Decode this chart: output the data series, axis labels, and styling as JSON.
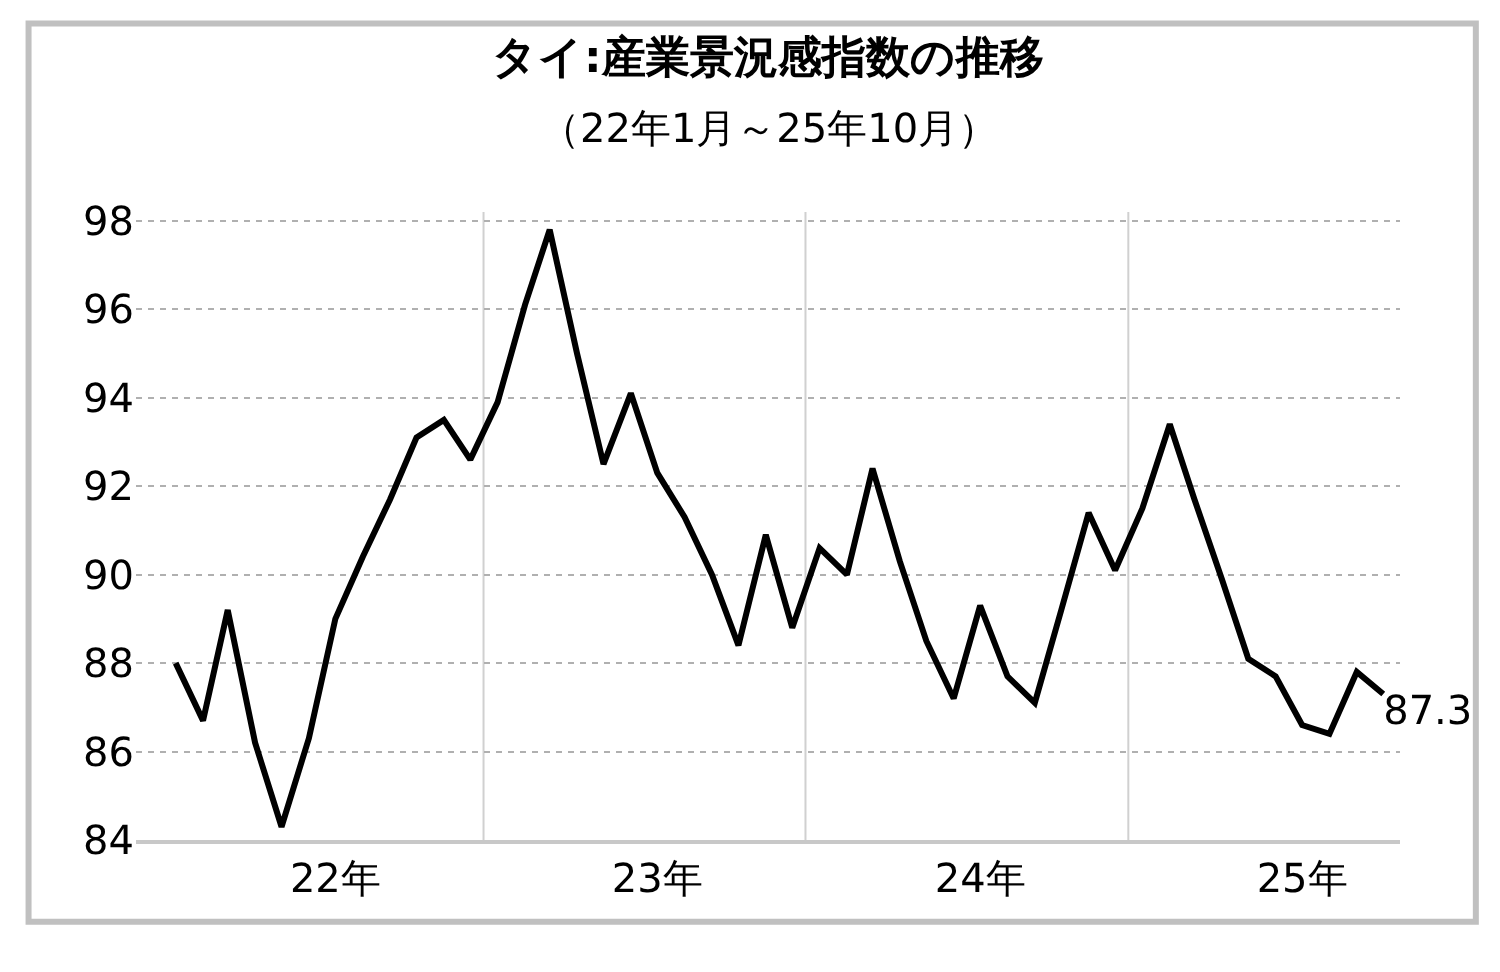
{
  "chart_data": {
    "type": "line",
    "title": "タイ:産業景況感指数の推移",
    "subtitle": "（22年1月～25年10月）",
    "x": [
      "2022-01",
      "2022-02",
      "2022-03",
      "2022-04",
      "2022-05",
      "2022-06",
      "2022-07",
      "2022-08",
      "2022-09",
      "2022-10",
      "2022-11",
      "2022-12",
      "2023-01",
      "2023-02",
      "2023-03",
      "2023-04",
      "2023-05",
      "2023-06",
      "2023-07",
      "2023-08",
      "2023-09",
      "2023-10",
      "2023-11",
      "2023-12",
      "2024-01",
      "2024-02",
      "2024-03",
      "2024-04",
      "2024-05",
      "2024-06",
      "2024-07",
      "2024-08",
      "2024-09",
      "2024-10",
      "2024-11",
      "2024-12",
      "2025-01",
      "2025-02",
      "2025-03",
      "2025-04",
      "2025-05",
      "2025-06",
      "2025-07",
      "2025-08",
      "2025-09",
      "2025-10"
    ],
    "series": [
      {
        "color": "#000000",
        "values": [
          88.0,
          86.7,
          89.2,
          86.2,
          84.3,
          86.3,
          89.0,
          90.4,
          91.7,
          93.1,
          93.5,
          92.6,
          93.9,
          96.1,
          97.8,
          95.0,
          92.5,
          94.1,
          92.3,
          91.3,
          90.0,
          88.4,
          90.9,
          88.8,
          90.6,
          90.0,
          92.4,
          90.3,
          88.5,
          87.2,
          89.3,
          87.7,
          87.1,
          89.2,
          91.4,
          90.1,
          91.5,
          93.4,
          91.7,
          89.9,
          88.1,
          87.7,
          86.6,
          86.4,
          87.8,
          87.3
        ],
        "value_labels": [
          null,
          null,
          null,
          null,
          null,
          null,
          null,
          null,
          null,
          null,
          null,
          null,
          null,
          null,
          null,
          null,
          null,
          null,
          null,
          null,
          null,
          null,
          null,
          null,
          null,
          null,
          null,
          null,
          null,
          null,
          null,
          null,
          null,
          null,
          null,
          null,
          null,
          null,
          null,
          null,
          null,
          null,
          null,
          null,
          null,
          "87.3"
        ]
      }
    ],
    "xlim": [
      "2021-11-17",
      "2025-10-20"
    ],
    "xticks": [
      {
        "value": "2022-07-01",
        "label": "22年"
      },
      {
        "value": "2022-12-16",
        "label": null
      },
      {
        "value": "2023-07-01",
        "label": "23年"
      },
      {
        "value": "2023-12-16",
        "label": null
      },
      {
        "value": "2024-07-01",
        "label": "24年"
      },
      {
        "value": "2024-12-16",
        "label": null
      },
      {
        "value": "2025-07-01",
        "label": "25年"
      }
    ],
    "ylim": [
      84,
      98.2
    ],
    "yticks": [
      84,
      86,
      88,
      90,
      92,
      94,
      96,
      98
    ],
    "grid": true,
    "marker": "none",
    "line_style": "solid"
  }
}
